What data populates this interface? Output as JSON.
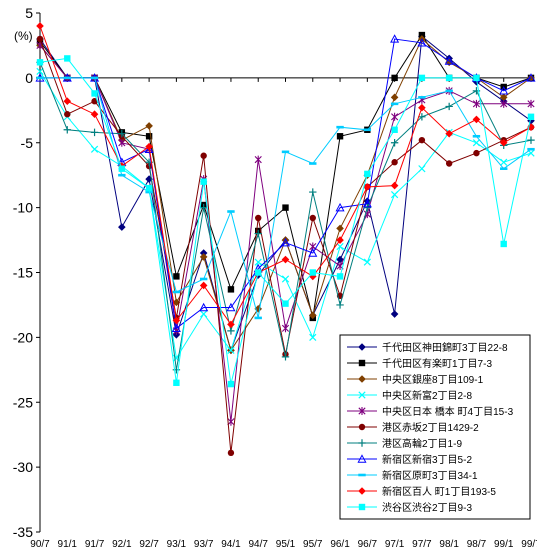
{
  "chart_data": {
    "type": "line",
    "ylabel": "(%)",
    "ylim": [
      -35,
      5
    ],
    "yticks": [
      5,
      0,
      -5,
      -10,
      -15,
      -20,
      -25,
      -30,
      -35
    ],
    "grid": false,
    "legend_position": "bottom-right",
    "categories": [
      "90/7",
      "91/1",
      "91/7",
      "92/1",
      "92/7",
      "93/1",
      "93/7",
      "94/1",
      "94/7",
      "95/1",
      "95/7",
      "96/1",
      "96/7",
      "97/1",
      "97/7",
      "98/1",
      "98/7",
      "99/1",
      "99/7"
    ],
    "series": [
      {
        "name": "千代田区神田錦町3丁目22-8",
        "color": "#00007f",
        "marker": "diamond",
        "values": [
          3.0,
          0.0,
          0.0,
          -11.5,
          -7.8,
          -19.8,
          -13.5,
          -21.0,
          -15.2,
          -12.5,
          -18.3,
          -14.0,
          -9.5,
          -18.2,
          3.2,
          1.5,
          -0.3,
          -1.8,
          -3.3
        ]
      },
      {
        "name": "千代田区有楽町1丁目7-3",
        "color": "#000000",
        "marker": "square",
        "values": [
          2.8,
          0.0,
          0.0,
          -4.2,
          -4.5,
          -15.3,
          -9.8,
          -16.3,
          -11.8,
          -10.0,
          -18.5,
          -4.5,
          -4.0,
          0.0,
          3.3,
          0.0,
          0.0,
          -0.7,
          0.0
        ]
      },
      {
        "name": "中央区銀座8丁目109-1",
        "color": "#7f3f00",
        "marker": "diamond",
        "values": [
          2.5,
          0.0,
          0.0,
          -4.8,
          -3.7,
          -17.3,
          -13.8,
          -21.0,
          -17.8,
          -12.5,
          -18.3,
          -11.6,
          -7.5,
          -1.5,
          3.0,
          1.2,
          0.0,
          -1.5,
          0.0
        ]
      },
      {
        "name": "中央区新富2丁目2-8",
        "color": "#00ffff",
        "marker": "x",
        "values": [
          0.5,
          -3.0,
          -5.5,
          -6.8,
          -8.5,
          -21.6,
          -18.2,
          -21.0,
          -14.2,
          -15.5,
          -20.0,
          -13.0,
          -14.2,
          -9.0,
          -7.0,
          -4.2,
          -5.0,
          -6.5,
          -5.8
        ]
      },
      {
        "name": "中央区日本 橋本 町4丁目15-3",
        "color": "#7f007f",
        "marker": "star",
        "values": [
          2.5,
          0.0,
          0.0,
          -5.0,
          -5.5,
          -19.5,
          -7.8,
          -26.5,
          -6.3,
          -19.3,
          -13.0,
          -14.5,
          -10.5,
          -3.0,
          -1.7,
          -1.0,
          -2.0,
          -2.0,
          -2.0
        ]
      },
      {
        "name": "港区赤坂2丁目1429-2",
        "color": "#7f0000",
        "marker": "circle",
        "values": [
          3.0,
          -2.8,
          -1.8,
          -4.5,
          -6.8,
          -18.5,
          -6.0,
          -28.9,
          -10.8,
          -21.3,
          -10.8,
          -16.8,
          -8.4,
          -6.5,
          -4.8,
          -6.6,
          -5.8,
          -4.8,
          -3.8
        ]
      },
      {
        "name": "港区高輪2丁目1-9",
        "color": "#007f7f",
        "marker": "plus",
        "values": [
          1.2,
          -4.0,
          -4.2,
          -4.3,
          -6.5,
          -22.5,
          -10.0,
          -19.5,
          -12.0,
          -21.5,
          -8.8,
          -17.5,
          -10.0,
          -5.0,
          -3.0,
          -2.2,
          -1.0,
          -5.2,
          -4.8
        ]
      },
      {
        "name": "新宿区新宿3丁目5-2",
        "color": "#0000ff",
        "marker": "triangle",
        "values": [
          0.0,
          0.0,
          0.0,
          -6.5,
          -5.5,
          -19.3,
          -17.7,
          -17.7,
          -14.7,
          -12.7,
          -13.5,
          -10.0,
          -9.7,
          3.0,
          2.7,
          1.3,
          0.0,
          -1.0,
          0.0
        ]
      },
      {
        "name": "新宿区原町3丁目34-1",
        "color": "#00ccff",
        "marker": "dash",
        "values": [
          0.0,
          0.0,
          0.0,
          -7.5,
          -8.8,
          -16.5,
          -15.5,
          -10.3,
          -18.5,
          -5.7,
          -6.6,
          -3.8,
          -4.0,
          -2.0,
          -1.5,
          -1.0,
          -4.5,
          -7.0,
          -5.5
        ]
      },
      {
        "name": "新宿区百人 町1丁目193-5",
        "color": "#ff0000",
        "marker": "diamond",
        "values": [
          4.0,
          -1.8,
          -2.8,
          -6.8,
          -5.3,
          -18.7,
          -16.0,
          -19.0,
          -15.0,
          -14.0,
          -15.3,
          -12.5,
          -8.4,
          -8.3,
          -2.3,
          -4.3,
          -3.2,
          -5.0,
          -3.8
        ]
      },
      {
        "name": "渋谷区渋谷2丁目9-3",
        "color": "#00ffff",
        "marker": "square",
        "values": [
          1.2,
          1.5,
          -1.2,
          -7.0,
          -8.5,
          -23.5,
          -8.0,
          -23.6,
          -15.0,
          -17.4,
          -15.0,
          -15.3,
          -7.4,
          -4.0,
          0.0,
          0.0,
          0.0,
          -12.8,
          -3.0
        ]
      }
    ]
  }
}
